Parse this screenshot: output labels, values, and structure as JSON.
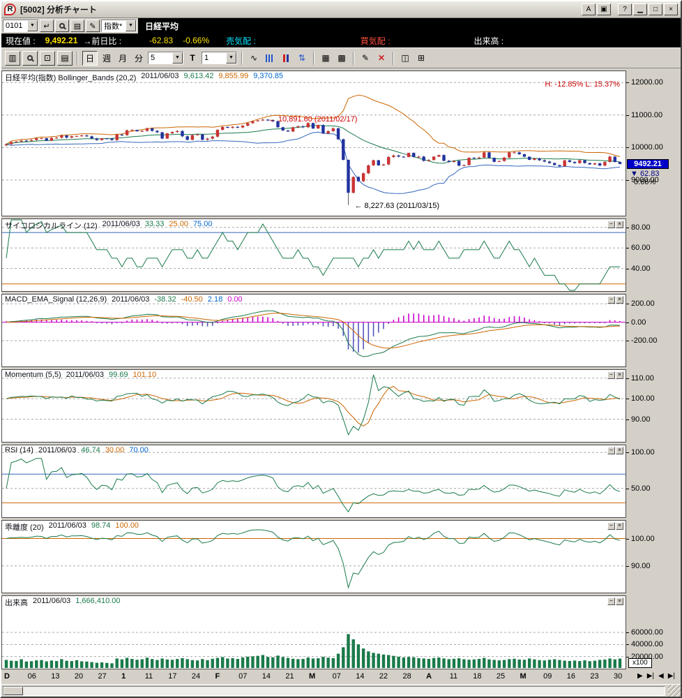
{
  "window": {
    "title": "[5002] 分析チャート",
    "logo": "R",
    "buttons": {
      "a": "A",
      "help": "?"
    }
  },
  "toolbar1": {
    "code": "0101",
    "index_type": "指数*",
    "symbol_tab": "日経平均"
  },
  "infobar": {
    "current_label": "現在値 :",
    "current_value": "9,492.21",
    "change_label": "→前日比 :",
    "change_value": "-62.83",
    "change_pct": "-0.66%",
    "ask_label": "売気配 :",
    "bid_label": "買気配 :",
    "volume_label": "出来高 :"
  },
  "toolbar2": {
    "period_day": "日",
    "period_week": "週",
    "period_month": "月",
    "period_minute": "分",
    "minute_value": "5",
    "tick_label": "T",
    "count_value": "1"
  },
  "panels": [
    {
      "title": "日経平均(指数) Bollinger_Bands (20,2)",
      "date": "2011/06/03",
      "v1": "9,613.42",
      "v2": "9,855.99",
      "v3": "9,370.85",
      "hl": "H: -12.85%   L: 15.37%"
    },
    {
      "title": "サイコロジカルライン (12)",
      "date": "2011/06/03",
      "v1": "33.33",
      "v2": "25.00",
      "v3": "75.00"
    },
    {
      "title": "MACD_EMA_Signal (12,26,9)",
      "date": "2011/06/03",
      "v1": "-38.32",
      "v2": "-40.50",
      "v3": "2.18",
      "v4": "0.00"
    },
    {
      "title": "Momentum (5,5)",
      "date": "2011/06/03",
      "v1": "99.69",
      "v2": "101.10"
    },
    {
      "title": "RSI (14)",
      "date": "2011/06/03",
      "v1": "46.74",
      "v2": "30.00",
      "v3": "70.00"
    },
    {
      "title": "乖離度 (20)",
      "date": "2011/06/03",
      "v1": "98.74",
      "v2": "100.00"
    },
    {
      "title": "出来高",
      "date": "2011/06/03",
      "v1": "1,666,410.00"
    }
  ],
  "axis": {
    "main": [
      "12000.00",
      "11000.00",
      "10000.00",
      "9000.00"
    ],
    "psych": [
      "80.00",
      "60.00",
      "40.00"
    ],
    "macd": [
      "200.00",
      "0.00",
      "-200.00"
    ],
    "momentum": [
      "110.00",
      "100.00",
      "90.00"
    ],
    "rsi": [
      "100.00",
      "50.00"
    ],
    "kairi": [
      "100.00",
      "90.00"
    ],
    "volume": [
      "60000.00",
      "40000.00",
      "20000.00"
    ],
    "volume_unit": "x100",
    "price_tag": "9492.21",
    "price_change": "▼ 62.83",
    "price_change_pct": "0.66%"
  },
  "xaxis_labels": [
    "D",
    "06",
    "13",
    "20",
    "27",
    "1",
    "11",
    "17",
    "24",
    "F",
    "07",
    "14",
    "21",
    "M",
    "07",
    "14",
    "22",
    "28",
    "A",
    "11",
    "18",
    "25",
    "M",
    "09",
    "16",
    "23",
    "30"
  ],
  "xaxis_nav": [
    "▶",
    "▶|",
    "◀",
    "▶|"
  ],
  "colors": {
    "series_green": "#1a7a4a",
    "series_orange": "#cc6600",
    "series_blue": "#3366bb",
    "series_magenta": "#cc00cc",
    "candle_up": "#cc3333",
    "candle_down": "#2233a0",
    "volume_bar": "#1a7a4a",
    "grid": "#a8a8a8",
    "annotation_red": "#cc0000",
    "price_tag_bg": "#0000c8",
    "infobar_value": "#ffe400",
    "ask_label": "#00e5ff",
    "bid_label": "#ff5040"
  },
  "chart_data": {
    "type": "candlestick+indicators",
    "symbol": "日経平均(指数)",
    "date": "2011/06/03",
    "high_annotation": {
      "label": "← 10,891.60 (2011/02/17)",
      "value": 10891.6
    },
    "low_annotation": {
      "label": "← 8,227.63 (2011/03/15)",
      "value": 8227.63
    },
    "hl_readout": "H: -12.85%   L: 15.37%",
    "indicators": {
      "bollinger": {
        "params": "(20,2)",
        "mid": 9613.42,
        "upper": 9855.99,
        "lower": 9370.85
      },
      "psychological": {
        "params": "(12)",
        "value": 33.33,
        "lower": 25.0,
        "upper": 75.0
      },
      "macd": {
        "params": "(12,26,9)",
        "macd": -38.32,
        "signal": -40.5,
        "hist": 2.18,
        "zero": 0.0
      },
      "momentum": {
        "params": "(5,5)",
        "value": 99.69,
        "signal": 101.1
      },
      "rsi": {
        "params": "(14)",
        "value": 46.74,
        "lower": 30.0,
        "upper": 70.0
      },
      "kairi": {
        "params": "(20)",
        "value": 98.74,
        "base": 100.0
      },
      "volume": {
        "value": "1,666,410.00"
      }
    },
    "closes": [
      10100,
      10167,
      10182,
      10212,
      10205,
      10232,
      10285,
      10286,
      10212,
      10296,
      10303,
      10370,
      10304,
      10346,
      10356,
      10371,
      10344,
      10279,
      10229,
      10281,
      10274,
      10229,
      10398,
      10381,
      10529,
      10541,
      10499,
      10512,
      10589,
      10513,
      10468,
      10275,
      10437,
      10478,
      10508,
      10345,
      10236,
      10383,
      10402,
      10237,
      10274,
      10335,
      10543,
      10635,
      10605,
      10636,
      10617,
      10672,
      10749,
      10808,
      10836,
      10857,
      10842,
      10808,
      10624,
      10525,
      10493,
      10624,
      10654,
      10624,
      10754,
      10586,
      10693,
      10434,
      10505,
      10590,
      10254,
      9620,
      8605,
      9093,
      8962,
      9206,
      9451,
      9608,
      9449,
      9478,
      9708,
      9755,
      9719,
      9708,
      9833,
      9708,
      9719,
      9590,
      9615,
      9719,
      9768,
      9591,
      9556,
      9587,
      9441,
      9459,
      9685,
      9671,
      9691,
      9849,
      9682,
      9558,
      9584,
      9691,
      9850,
      9850,
      9794,
      9716,
      9620,
      9662,
      9607,
      9567,
      9521,
      9460,
      9422,
      9604,
      9555,
      9521,
      9607,
      9521,
      9478,
      9512,
      9445,
      9555,
      9719,
      9555.04,
      9492.21
    ],
    "volumes": [
      14500,
      13200,
      12800,
      15600,
      11900,
      12400,
      13800,
      14200,
      12100,
      13500,
      12700,
      15800,
      13100,
      12600,
      14000,
      12200,
      11800,
      10900,
      9800,
      10400,
      9600,
      8900,
      16800,
      15400,
      17900,
      16200,
      14800,
      15600,
      18200,
      15900,
      14400,
      16800,
      15200,
      14700,
      16100,
      17400,
      15800,
      14200,
      13600,
      15900,
      14100,
      16400,
      17800,
      19200,
      16800,
      17400,
      16200,
      18600,
      19800,
      20400,
      21200,
      22600,
      19400,
      18800,
      21600,
      19200,
      17800,
      16400,
      15800,
      16200,
      18400,
      16800,
      17200,
      19600,
      18200,
      17400,
      24800,
      35400,
      57200,
      48600,
      40200,
      33400,
      28600,
      26200,
      24800,
      23400,
      22600,
      21200,
      19800,
      18600,
      19400,
      18800,
      17400,
      16800,
      16200,
      17600,
      18400,
      16900,
      15800,
      16400,
      17200,
      15600,
      14800,
      15400,
      16200,
      17800,
      15400,
      14600,
      13800,
      14400,
      15800,
      16400,
      15200,
      14800,
      16800,
      15400,
      14200,
      13600,
      14800,
      15600,
      14400,
      13200,
      12800,
      13400,
      12600,
      13800,
      12400,
      13200,
      14600,
      15200,
      16800,
      15400,
      16664
    ]
  }
}
